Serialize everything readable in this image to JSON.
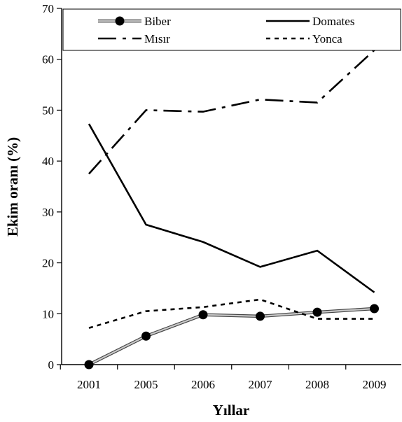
{
  "chart_data": {
    "type": "line",
    "title": "",
    "xlabel": "Yıllar",
    "ylabel": "Ekim oranı (%)",
    "categories": [
      "2001",
      "2005",
      "2006",
      "2007",
      "2008",
      "2009"
    ],
    "ylim": [
      0,
      70
    ],
    "yticks": [
      0,
      10,
      20,
      30,
      40,
      50,
      60,
      70
    ],
    "grid": false,
    "legend_position": "top",
    "series": [
      {
        "name": "Biber",
        "style": "gray-line-with-black-dots",
        "color": "#000000",
        "values": [
          0,
          5.6,
          9.8,
          9.5,
          10.3,
          11.0
        ]
      },
      {
        "name": "Domates",
        "style": "solid",
        "color": "#000000",
        "values": [
          47.3,
          27.5,
          24.1,
          19.2,
          22.4,
          14.2
        ]
      },
      {
        "name": "Mısır",
        "style": "dash-dot",
        "color": "#000000",
        "values": [
          37.5,
          50.0,
          49.7,
          52.1,
          51.5,
          61.8
        ]
      },
      {
        "name": "Yonca",
        "style": "dotted",
        "color": "#000000",
        "values": [
          7.2,
          10.5,
          11.3,
          12.8,
          9.0,
          9.0
        ]
      }
    ]
  }
}
